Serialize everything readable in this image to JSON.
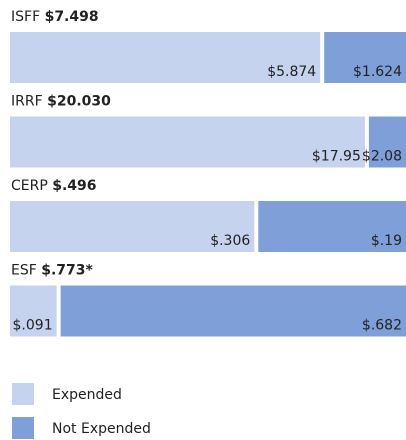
{
  "chart_data": {
    "type": "stacked-bar-100",
    "categories": [
      "ISFF",
      "IRRF",
      "CERP",
      "ESF"
    ],
    "totals": [
      7.498,
      20.03,
      0.496,
      0.773
    ],
    "total_labels": [
      "$7.498",
      "$20.030",
      "$.496",
      "$.773*"
    ],
    "series": [
      {
        "name": "Expended",
        "color": "#c5d3ee",
        "values": [
          5.874,
          17.95,
          0.306,
          0.091
        ],
        "value_labels": [
          "$5.874",
          "$17.95",
          "$.306",
          "$.091"
        ]
      },
      {
        "name": "Not Expended",
        "color": "#7f9fd8",
        "values": [
          1.624,
          2.08,
          0.19,
          0.682
        ],
        "value_labels": [
          "$1.624",
          "$2.08",
          "$.19",
          "$.682"
        ]
      }
    ]
  }
}
